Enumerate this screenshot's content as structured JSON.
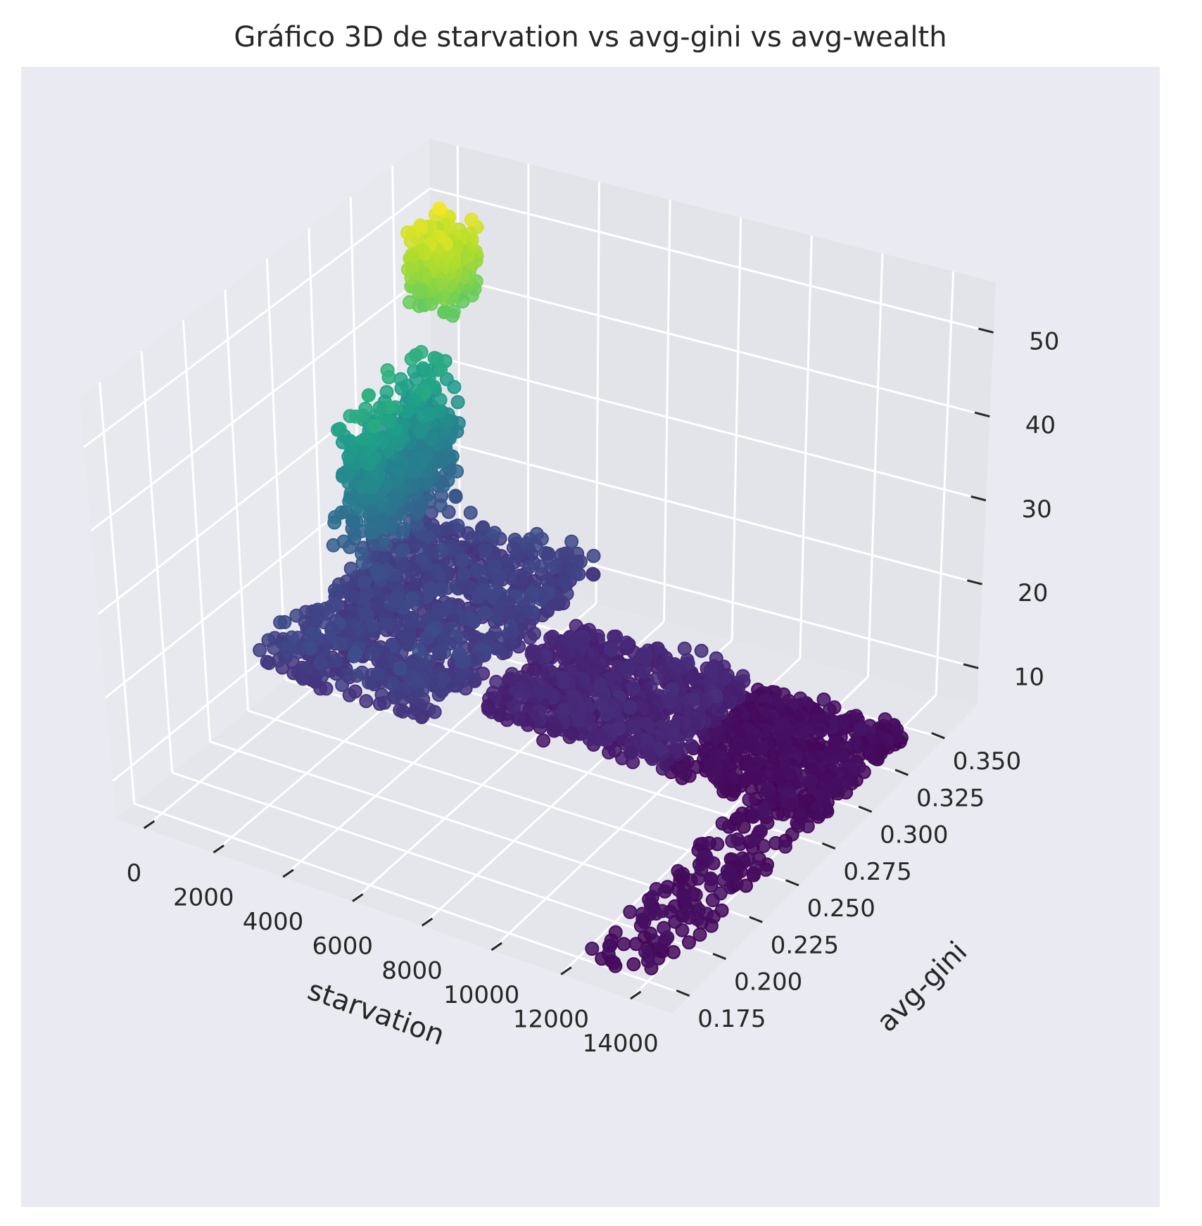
{
  "chart_data": {
    "type": "scatter",
    "projection": "3d",
    "title": "Gráfico 3D de starvation vs avg-gini vs avg-wealth",
    "xlabel": "starvation",
    "ylabel": "avg-gini",
    "zlabel": "",
    "xlim": [
      -800,
      15200
    ],
    "ylim": [
      0.163,
      0.372
    ],
    "zlim": [
      5.5,
      56
    ],
    "x_ticks": [
      0,
      2000,
      4000,
      6000,
      8000,
      10000,
      12000,
      14000
    ],
    "x_tick_labels": [
      "0",
      "2000",
      "4000",
      "6000",
      "8000",
      "10000",
      "12000",
      "14000"
    ],
    "y_ticks": [
      0.175,
      0.2,
      0.225,
      0.25,
      0.275,
      0.3,
      0.325,
      0.35
    ],
    "y_tick_labels": [
      "0.175",
      "0.200",
      "0.225",
      "0.250",
      "0.275",
      "0.300",
      "0.325",
      "0.350"
    ],
    "z_ticks": [
      10,
      20,
      30,
      40,
      50
    ],
    "z_tick_labels": [
      "10",
      "20",
      "30",
      "40",
      "50"
    ],
    "colormap": "viridis",
    "color_encodes": "avg-wealth",
    "grid": true,
    "pane_color": "#e5e5ec",
    "figure_background": "#eaeaf2",
    "approximate_point_clusters": [
      {
        "x_range": [
          200,
          1400
        ],
        "y_range": [
          0.335,
          0.355
        ],
        "z_range": [
          40,
          54
        ]
      },
      {
        "x_range": [
          0,
          1200
        ],
        "y_range": [
          0.29,
          0.35
        ],
        "z_range": [
          14,
          39
        ]
      },
      {
        "x_range": [
          0,
          5000
        ],
        "y_range": [
          0.24,
          0.35
        ],
        "z_range": [
          11,
          18
        ]
      },
      {
        "x_range": [
          5000,
          10500
        ],
        "y_range": [
          0.27,
          0.33
        ],
        "z_range": [
          8,
          13
        ]
      },
      {
        "x_range": [
          10000,
          14500
        ],
        "y_range": [
          0.28,
          0.34
        ],
        "z_range": [
          6,
          9
        ]
      },
      {
        "x_range": [
          12500,
          14500
        ],
        "y_range": [
          0.17,
          0.28
        ],
        "z_range": [
          6,
          9
        ]
      }
    ]
  }
}
